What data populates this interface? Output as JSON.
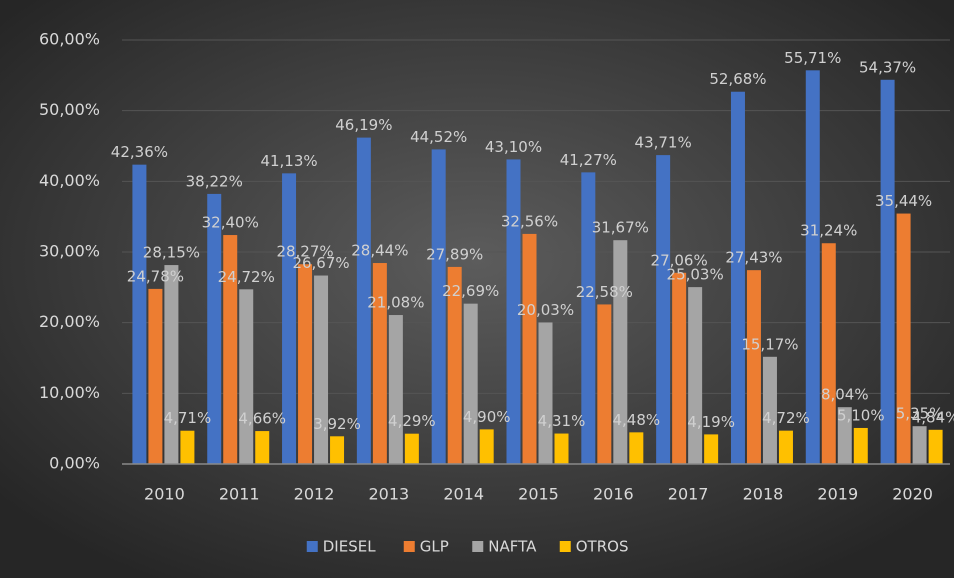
{
  "chart_data": {
    "type": "bar",
    "categories": [
      "2010",
      "2011",
      "2012",
      "2013",
      "2014",
      "2015",
      "2016",
      "2017",
      "2018",
      "2019",
      "2020"
    ],
    "series": [
      {
        "name": "DIESEL",
        "color": "#4472c4",
        "values": [
          42.36,
          38.22,
          41.13,
          46.19,
          44.52,
          43.1,
          41.27,
          43.71,
          52.68,
          55.71,
          54.37
        ],
        "value_labels": [
          "42,36%",
          "38,22%",
          "41,13%",
          "46,19%",
          "44,52%",
          "43,10%",
          "41,27%",
          "43,71%",
          "52,68%",
          "55,71%",
          "54,37%"
        ]
      },
      {
        "name": "GLP",
        "color": "#ed7d31",
        "values": [
          24.78,
          32.4,
          28.27,
          28.44,
          27.89,
          32.56,
          22.58,
          27.06,
          27.43,
          31.24,
          35.44
        ],
        "value_labels": [
          "24,78%",
          "32,40%",
          "28,27%",
          "28,44%",
          "27,89%",
          "32,56%",
          "22,58%",
          "27,06%",
          "27,43%",
          "31,24%",
          "35,44%"
        ]
      },
      {
        "name": "NAFTA",
        "color": "#a5a5a5",
        "values": [
          28.15,
          24.72,
          26.67,
          21.08,
          22.69,
          20.03,
          31.67,
          25.03,
          15.17,
          8.04,
          5.35
        ],
        "value_labels": [
          "28,15%",
          "24,72%",
          "26,67%",
          "21,08%",
          "22,69%",
          "20,03%",
          "31,67%",
          "25,03%",
          "15,17%",
          "8,04%",
          "5,35%"
        ]
      },
      {
        "name": "OTROS",
        "color": "#ffc000",
        "values": [
          4.71,
          4.66,
          3.92,
          4.29,
          4.9,
          4.31,
          4.48,
          4.19,
          4.72,
          5.1,
          4.84
        ],
        "value_labels": [
          "4,71%",
          "4,66%",
          "3,92%",
          "4,29%",
          "4,90%",
          "4,31%",
          "4,48%",
          "4,19%",
          "4,72%",
          "5,10%",
          "4,84%"
        ]
      }
    ],
    "ylim": [
      0,
      60
    ],
    "yticks": [
      {
        "value": 0,
        "label": "0,00%"
      },
      {
        "value": 10,
        "label": "10,00%"
      },
      {
        "value": 20,
        "label": "20,00%"
      },
      {
        "value": 30,
        "label": "30,00%"
      },
      {
        "value": 40,
        "label": "40,00%"
      },
      {
        "value": 50,
        "label": "50,00%"
      },
      {
        "value": 60,
        "label": "60,00%"
      }
    ],
    "grid": true,
    "legend": "bottom"
  }
}
